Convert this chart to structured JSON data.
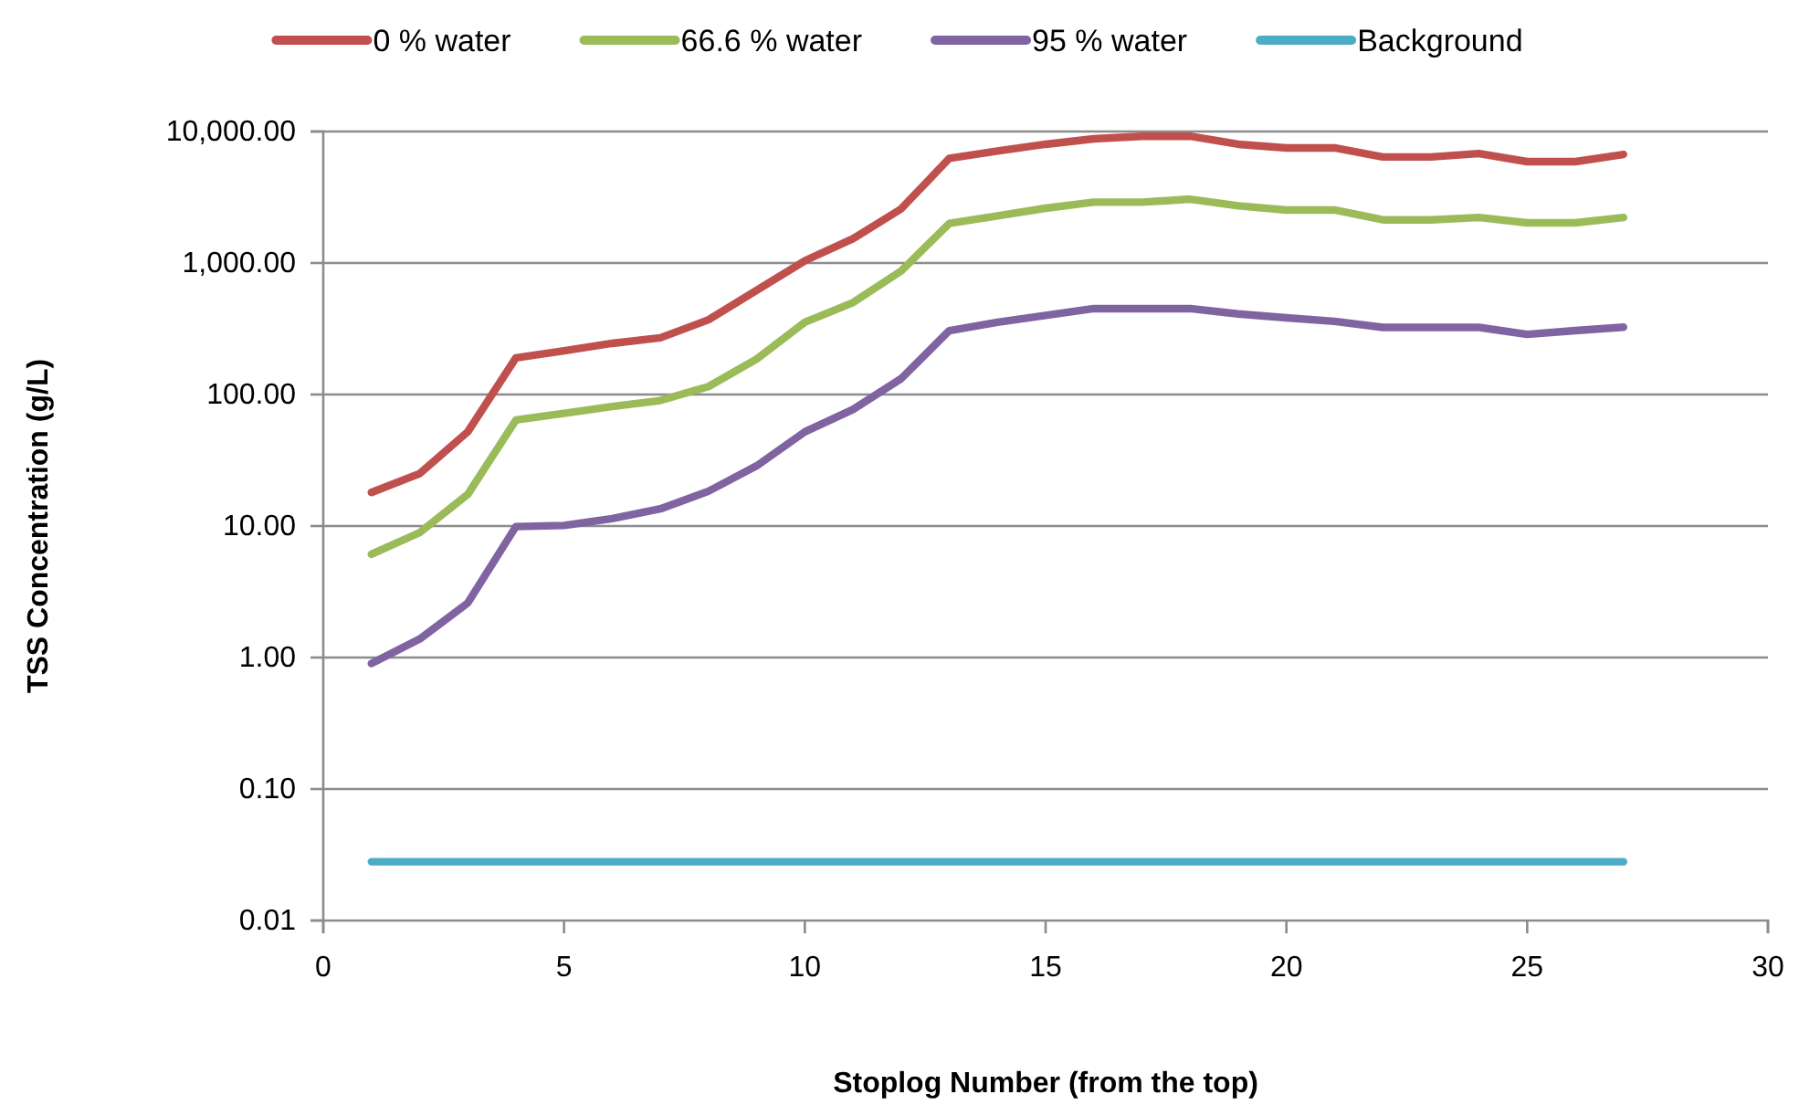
{
  "chart_data": {
    "type": "line",
    "xlabel": "Stoplog Number (from the top)",
    "ylabel": "TSS Concentration (g/L)",
    "x": [
      1,
      2,
      3,
      4,
      5,
      6,
      7,
      8,
      9,
      10,
      11,
      12,
      13,
      14,
      15,
      16,
      17,
      18,
      19,
      20,
      21,
      22,
      23,
      24,
      25,
      26,
      27
    ],
    "series": [
      {
        "name": "0 % water",
        "color": "#c0504d",
        "values": [
          18,
          25,
          52,
          190,
          215,
          245,
          270,
          370,
          620,
          1040,
          1530,
          2580,
          6250,
          7100,
          8000,
          8800,
          9200,
          9200,
          8000,
          7500,
          7500,
          6400,
          6400,
          6800,
          5900,
          5900,
          6700
        ]
      },
      {
        "name": "66.6 % water",
        "color": "#9bbb59",
        "values": [
          6.1,
          8.9,
          17.4,
          64,
          72,
          81,
          90,
          115,
          186,
          354,
          500,
          870,
          2000,
          2280,
          2610,
          2900,
          2900,
          3060,
          2720,
          2530,
          2530,
          2130,
          2130,
          2220,
          2020,
          2020,
          2220
        ]
      },
      {
        "name": "95 % water",
        "color": "#8064a2",
        "values": [
          0.9,
          1.38,
          2.6,
          9.9,
          10.1,
          11.4,
          13.5,
          18.4,
          28.7,
          52,
          77,
          132,
          306,
          354,
          400,
          450,
          450,
          450,
          410,
          383,
          360,
          324,
          324,
          324,
          287,
          306,
          325
        ]
      },
      {
        "name": "Background",
        "color": "#4bacc6",
        "values": [
          0.028,
          0.028,
          0.028,
          0.028,
          0.028,
          0.028,
          0.028,
          0.028,
          0.028,
          0.028,
          0.028,
          0.028,
          0.028,
          0.028,
          0.028,
          0.028,
          0.028,
          0.028,
          0.028,
          0.028,
          0.028,
          0.028,
          0.028,
          0.028,
          0.028,
          0.028,
          0.028
        ]
      }
    ],
    "xlim": [
      0,
      30
    ],
    "xticks": [
      0,
      5,
      10,
      15,
      20,
      25,
      30
    ],
    "ylim": [
      0.01,
      10000
    ],
    "yticks": [
      {
        "value": 0.01,
        "label": "0.01"
      },
      {
        "value": 0.1,
        "label": "0.10"
      },
      {
        "value": 1,
        "label": "1.00"
      },
      {
        "value": 10,
        "label": "10.00"
      },
      {
        "value": 100,
        "label": "100.00"
      },
      {
        "value": 1000,
        "label": "1,000.00"
      },
      {
        "value": 10000,
        "label": "10,000.00"
      }
    ],
    "log": true,
    "grid": "y",
    "legend": "top"
  }
}
